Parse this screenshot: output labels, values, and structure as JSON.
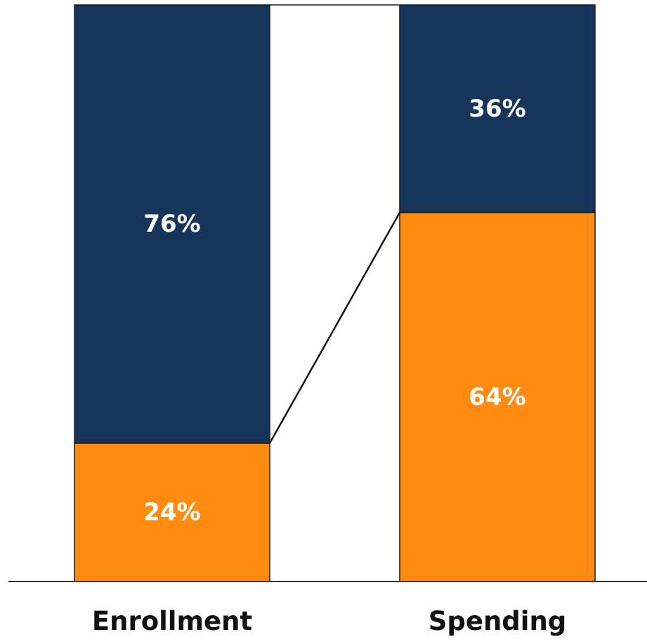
{
  "chart_data": {
    "type": "bar",
    "stacked": true,
    "percent_stacked": true,
    "categories": [
      "Enrollment",
      "Spending"
    ],
    "series": [
      {
        "color": "#FF8C10",
        "values": [
          24,
          64
        ],
        "labels": [
          "24%",
          "64%"
        ]
      },
      {
        "color": "#17345A",
        "values": [
          76,
          36
        ],
        "labels": [
          "76%",
          "36%"
        ]
      }
    ],
    "connector_line": true,
    "ylim": [
      0,
      100
    ],
    "grid": false,
    "legend": "none",
    "title": "",
    "xlabel": "",
    "ylabel": ""
  }
}
